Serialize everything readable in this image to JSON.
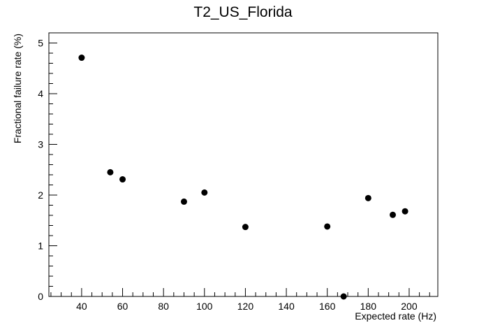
{
  "chart_data": {
    "type": "scatter",
    "title": "T2_US_Florida",
    "xlabel": "Expected rate (Hz)",
    "ylabel": "Fractional failure rate (%)",
    "xlim": [
      24,
      214
    ],
    "ylim": [
      0,
      5.2
    ],
    "x_ticks": [
      40,
      60,
      80,
      100,
      120,
      140,
      160,
      180,
      200
    ],
    "y_ticks": [
      0,
      1,
      2,
      3,
      4,
      5
    ],
    "grid": false,
    "legend": "none",
    "marker_color": "#000000",
    "points": [
      {
        "x": 40,
        "y": 4.71
      },
      {
        "x": 54,
        "y": 2.45
      },
      {
        "x": 60,
        "y": 2.31
      },
      {
        "x": 90,
        "y": 1.87
      },
      {
        "x": 100,
        "y": 2.05
      },
      {
        "x": 120,
        "y": 1.37
      },
      {
        "x": 160,
        "y": 1.38
      },
      {
        "x": 168,
        "y": 0.0
      },
      {
        "x": 180,
        "y": 1.94
      },
      {
        "x": 192,
        "y": 1.61
      },
      {
        "x": 198,
        "y": 1.68
      }
    ]
  }
}
